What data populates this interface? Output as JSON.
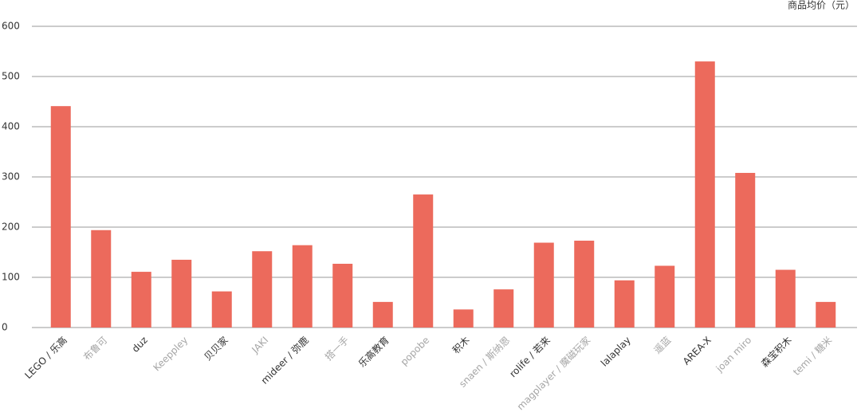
{
  "chart_data": {
    "type": "bar",
    "y_label": "商品均价（元）",
    "categories": [
      "LEGO / 乐高",
      "布鲁可",
      "duz",
      "Keeppley",
      "贝贝家",
      "JAKI",
      "mideer / 弥鹿",
      "搭一手",
      "乐高教育",
      "popobe",
      "积木",
      "snaen / 斯纳恩",
      "rolife / 若来",
      "magplayer / 魔磁玩家",
      "lalaplay",
      "遥蓝",
      "AREA-X",
      "joan miro",
      "森宝积木",
      "temi / 糖米"
    ],
    "values": [
      441,
      194,
      111,
      135,
      72,
      152,
      164,
      127,
      51,
      265,
      36,
      76,
      169,
      173,
      94,
      123,
      530,
      308,
      115,
      51
    ],
    "color": "#ec6a5c",
    "label_colors": [
      "#333333",
      "#a6a6a6"
    ],
    "ylim": [
      0,
      600
    ],
    "yticks": [
      0,
      100,
      200,
      300,
      400,
      500,
      600
    ],
    "grid": true
  }
}
